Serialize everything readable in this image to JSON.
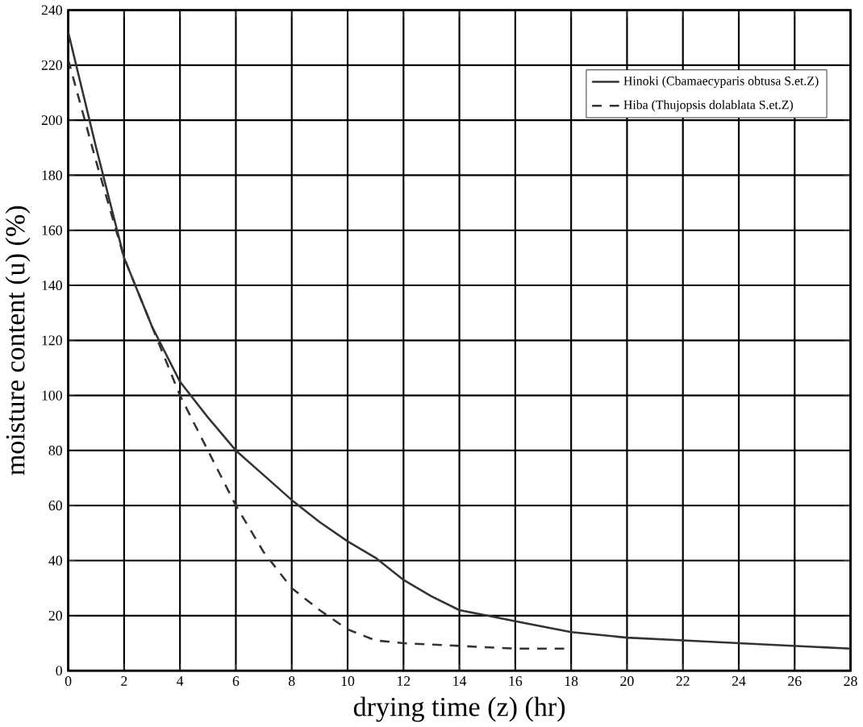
{
  "chart_data": {
    "type": "line",
    "xlabel": "drying time (z) (hr)",
    "ylabel": "moisture content (u) (%)",
    "xlim": [
      0,
      28
    ],
    "ylim": [
      0,
      240
    ],
    "xticks": [
      0,
      2,
      4,
      6,
      8,
      10,
      12,
      14,
      16,
      18,
      20,
      22,
      24,
      26,
      28
    ],
    "yticks": [
      0,
      20,
      40,
      60,
      80,
      100,
      120,
      140,
      160,
      180,
      200,
      220,
      240
    ],
    "grid": true,
    "legend": "top right",
    "marker": "none",
    "series": [
      {
        "name": "Hinoki (Cbamaecyparis obtusa S.et.Z)",
        "color": "#333333",
        "line_style": "solid",
        "x": [
          0,
          1,
          2,
          3,
          4,
          5,
          6,
          7,
          8,
          9,
          10,
          11,
          12,
          13,
          14,
          15,
          16,
          18,
          20,
          22,
          24,
          26,
          28
        ],
        "values": [
          232,
          190,
          150,
          125,
          105,
          92,
          80,
          71,
          62,
          54,
          47,
          41,
          33,
          27,
          22,
          20,
          18,
          14,
          12,
          11,
          10,
          9,
          8
        ]
      },
      {
        "name": "Hiba (Thujopsis dolablata S.et.Z)",
        "color": "#333333",
        "line_style": "dashed",
        "x": [
          0,
          1,
          2,
          3,
          4,
          5,
          6,
          7,
          8,
          9,
          10,
          11,
          12,
          14,
          16,
          18
        ],
        "values": [
          222,
          185,
          150,
          125,
          100,
          80,
          60,
          43,
          30,
          22,
          15,
          11,
          10,
          9,
          8,
          8
        ]
      }
    ]
  }
}
